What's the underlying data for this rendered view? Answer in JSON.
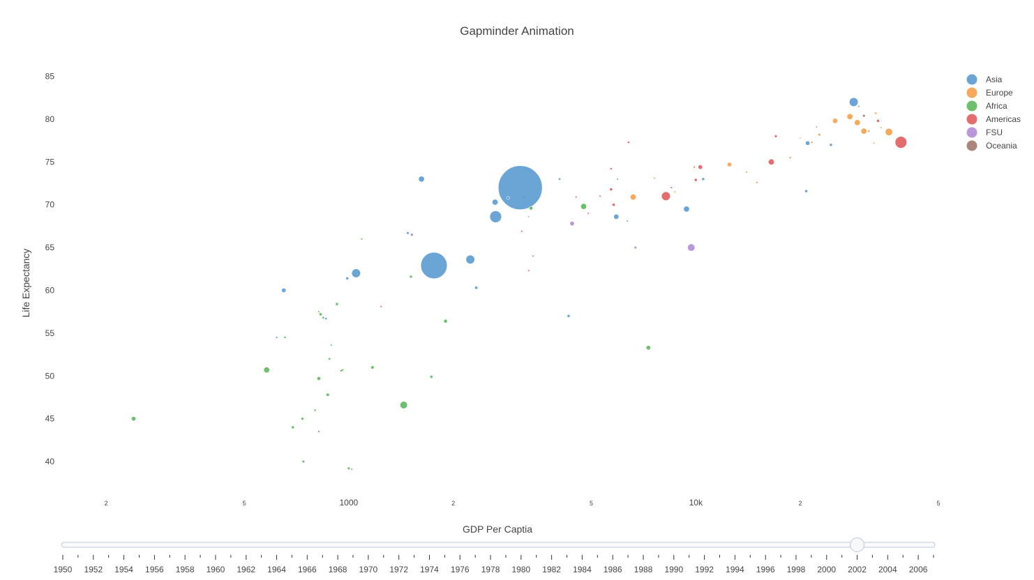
{
  "chart_data": {
    "type": "scatter",
    "title": "Gapminder Animation",
    "xlabel": "GDP Per Captia",
    "ylabel": "Life Expectancy",
    "x_scale": "log",
    "xlim": [
      150,
      50000
    ],
    "ylim": [
      36.5,
      87
    ],
    "x_tick_labels": [
      {
        "value": 200,
        "label": "2"
      },
      {
        "value": 500,
        "label": "5"
      },
      {
        "value": 1000,
        "label": "1000"
      },
      {
        "value": 2000,
        "label": "2"
      },
      {
        "value": 5000,
        "label": "5"
      },
      {
        "value": 10000,
        "label": "10k"
      },
      {
        "value": 20000,
        "label": "2"
      },
      {
        "value": 50000,
        "label": "5"
      }
    ],
    "y_ticks": [
      40,
      45,
      50,
      55,
      60,
      65,
      70,
      75,
      80,
      85
    ],
    "grid": false,
    "legend_position": "right",
    "series": [
      {
        "name": "Asia",
        "color": "#5b9bd0",
        "points": [
          [
            3120,
            72.0,
            30
          ],
          [
            1760,
            62.9,
            18
          ],
          [
            2650,
            68.6,
            8
          ],
          [
            1050,
            62.0,
            6
          ],
          [
            2240,
            63.6,
            6
          ],
          [
            1620,
            73.0,
            4
          ],
          [
            2640,
            70.3,
            4
          ],
          [
            28500,
            82.0,
            6
          ],
          [
            9400,
            69.5,
            4
          ],
          [
            5900,
            68.6,
            3.5
          ],
          [
            650,
            60.0,
            3
          ],
          [
            2880,
            70.8,
            2
          ],
          [
            3200,
            70.9,
            1.5
          ],
          [
            21000,
            77.2,
            3
          ],
          [
            24500,
            77.0,
            2
          ],
          [
            4300,
            57.0,
            2
          ],
          [
            10500,
            73.0,
            2
          ],
          [
            20800,
            71.6,
            2
          ],
          [
            990,
            61.4,
            2
          ],
          [
            2330,
            60.3,
            1.8
          ],
          [
            1480,
            66.7,
            1.5
          ],
          [
            860,
            56.7,
            1.3
          ],
          [
            4050,
            73.0,
            1.3
          ],
          [
            6350,
            68.1,
            1
          ],
          [
            620,
            54.5,
            1.1
          ],
          [
            29500,
            81.5,
            1
          ],
          [
            5950,
            73.0,
            1
          ],
          [
            3300,
            68.6,
            0.8
          ]
        ]
      },
      {
        "name": "Europe",
        "color": "#f5a04a",
        "points": [
          [
            36000,
            78.5,
            5
          ],
          [
            30500,
            78.6,
            4
          ],
          [
            29200,
            79.6,
            4
          ],
          [
            27800,
            80.3,
            4
          ],
          [
            25200,
            79.8,
            3.5
          ],
          [
            12500,
            74.7,
            3
          ],
          [
            6600,
            70.9,
            4
          ],
          [
            22700,
            78.2,
            1.5
          ],
          [
            33000,
            80.7,
            1.2
          ],
          [
            21600,
            77.3,
            1.2
          ],
          [
            15000,
            72.6,
            1.2
          ],
          [
            18700,
            75.5,
            1.2
          ],
          [
            31500,
            78.6,
            1.2
          ],
          [
            14000,
            73.8,
            1
          ],
          [
            7600,
            73.1,
            1
          ],
          [
            8700,
            71.5,
            1
          ],
          [
            34200,
            79.0,
            1
          ],
          [
            32600,
            77.2,
            1
          ],
          [
            20000,
            77.8,
            0.8
          ]
        ]
      },
      {
        "name": "Africa",
        "color": "#5cb85c",
        "points": [
          [
            240,
            45.0,
            3
          ],
          [
            1440,
            46.6,
            5
          ],
          [
            580,
            50.7,
            4
          ],
          [
            4750,
            69.8,
            4
          ],
          [
            7300,
            53.3,
            3
          ],
          [
            1900,
            56.4,
            2.5
          ],
          [
            3350,
            69.6,
            2.5
          ],
          [
            820,
            49.7,
            2.5
          ],
          [
            1170,
            51.0,
            2.2
          ],
          [
            870,
            47.8,
            2.2
          ],
          [
            925,
            58.4,
            2
          ],
          [
            830,
            57.2,
            2
          ],
          [
            1730,
            49.9,
            2
          ],
          [
            690,
            44.0,
            2
          ],
          [
            735,
            45.0,
            1.6
          ],
          [
            1510,
            61.6,
            1.6
          ],
          [
            845,
            56.8,
            1.3
          ],
          [
            1000,
            39.2,
            1.5
          ],
          [
            880,
            52.0,
            1.3
          ],
          [
            950,
            50.6,
            1.2
          ],
          [
            740,
            40.0,
            1.5
          ],
          [
            655,
            54.5,
            1.2
          ],
          [
            890,
            53.6,
            1
          ],
          [
            800,
            46.0,
            1.2
          ],
          [
            960,
            50.7,
            1.2
          ],
          [
            1020,
            39.1,
            1
          ],
          [
            1090,
            66.0,
            1
          ],
          [
            820,
            57.5,
            1
          ]
        ]
      },
      {
        "name": "Americas",
        "color": "#e05c5c",
        "points": [
          [
            39000,
            77.3,
            8
          ],
          [
            8200,
            71.0,
            6
          ],
          [
            16500,
            75.0,
            4
          ],
          [
            10300,
            74.4,
            3
          ],
          [
            10000,
            72.9,
            2
          ],
          [
            5700,
            71.8,
            2
          ],
          [
            5800,
            70.0,
            2
          ],
          [
            33500,
            79.8,
            2
          ],
          [
            17000,
            78.0,
            1.5
          ],
          [
            6400,
            77.3,
            1.2
          ],
          [
            5700,
            74.2,
            1.2
          ],
          [
            4900,
            69.0,
            1
          ],
          [
            4520,
            70.9,
            1
          ],
          [
            3400,
            64.0,
            1
          ],
          [
            3300,
            62.3,
            1
          ],
          [
            1240,
            58.1,
            1
          ],
          [
            820,
            43.5,
            1
          ],
          [
            3150,
            66.9,
            1
          ],
          [
            8500,
            72.0,
            1
          ],
          [
            5300,
            71.0,
            1
          ],
          [
            9900,
            74.4,
            1
          ]
        ]
      },
      {
        "name": "FSU",
        "color": "#b28bd6",
        "points": [
          [
            9700,
            65.0,
            5
          ],
          [
            4400,
            67.8,
            3
          ],
          [
            1520,
            66.5,
            2
          ],
          [
            6700,
            65.0,
            1.5
          ]
        ]
      },
      {
        "name": "Oceania",
        "color": "#a0796a",
        "points": [
          [
            30500,
            80.4,
            1.5
          ],
          [
            22300,
            79.1,
            0.8
          ]
        ]
      }
    ]
  },
  "slider": {
    "years": [
      "1950",
      "1952",
      "1954",
      "1956",
      "1958",
      "1960",
      "1962",
      "1964",
      "1966",
      "1968",
      "1970",
      "1972",
      "1974",
      "1976",
      "1978",
      "1980",
      "1982",
      "1984",
      "1986",
      "1988",
      "1990",
      "1992",
      "1994",
      "1996",
      "1998",
      "2000",
      "2002",
      "2004",
      "2006"
    ],
    "current_value": 2002
  }
}
